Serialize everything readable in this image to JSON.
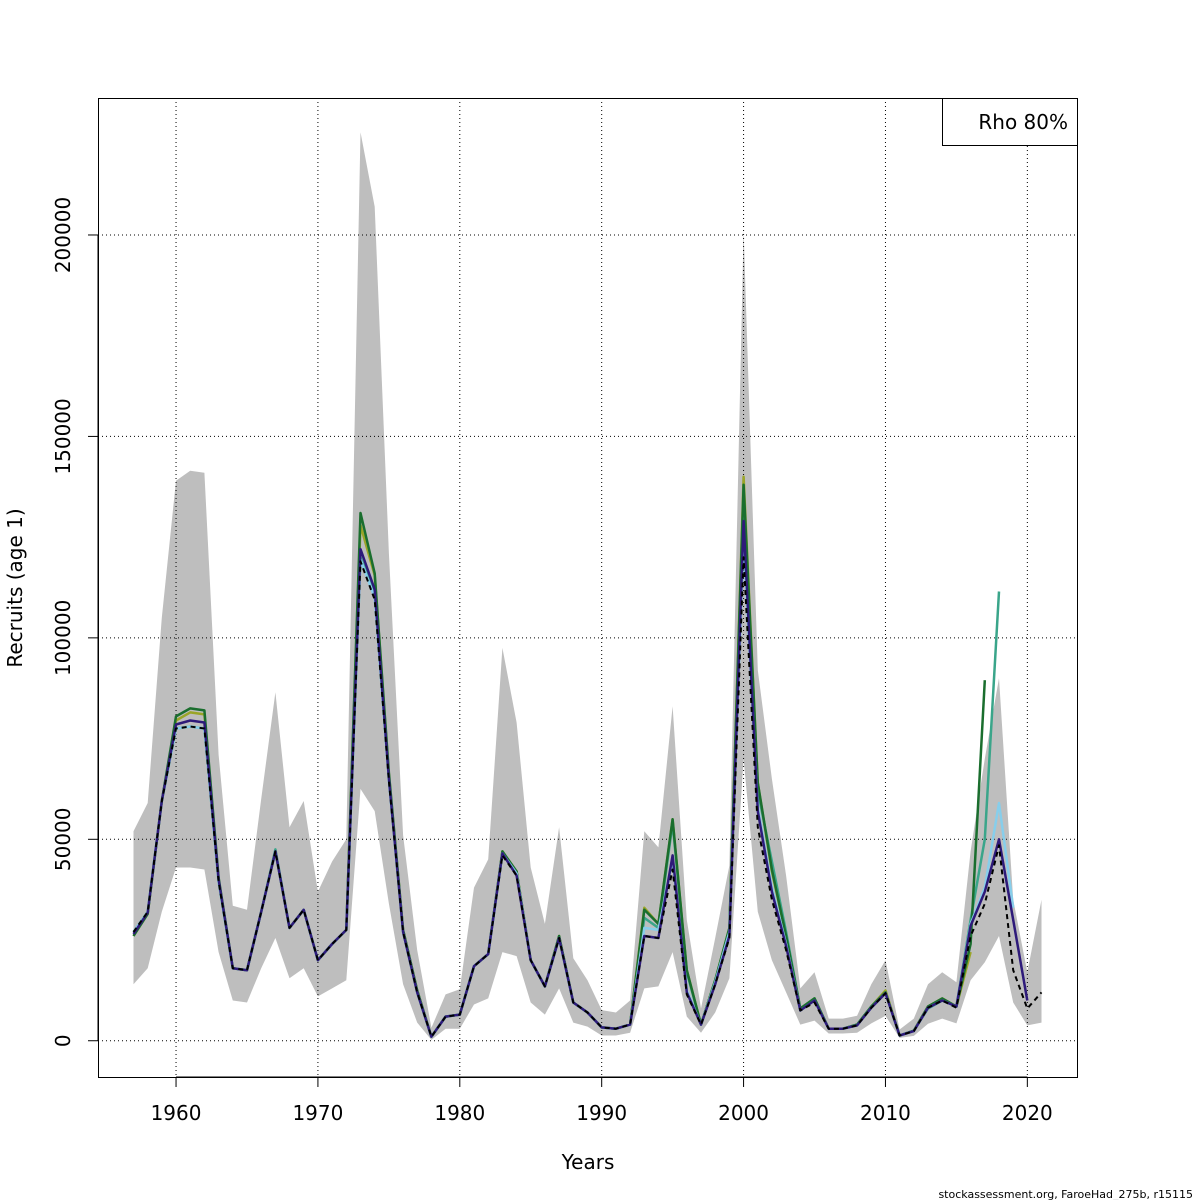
{
  "chart_data": {
    "type": "line",
    "xlabel": "Years",
    "ylabel": "Recruits (age 1)",
    "xlim": [
      1954.5,
      2023.5
    ],
    "ylim": [
      -9000,
      234000
    ],
    "xticks": [
      1960,
      1970,
      1980,
      1990,
      2000,
      2010,
      2020
    ],
    "yticks": [
      0,
      50000,
      100000,
      150000,
      200000
    ],
    "grid": true,
    "legend": {
      "position": "top-right",
      "text": "Rho 80%"
    },
    "credit": "stockassessment.org, FaroeHad_275b, r15115",
    "colors": {
      "band": "#bebebe",
      "base": "#000000",
      "peel1": "#2e1a7a",
      "peel2": "#87ceeb",
      "peel3": "#3aa58a",
      "peel4": "#1a6e2e",
      "peel5": "#9aa528"
    },
    "confidence_band": {
      "x": [
        1957,
        1958,
        1959,
        1960,
        1961,
        1962,
        1963,
        1964,
        1965,
        1966,
        1967,
        1968,
        1969,
        1970,
        1971,
        1972,
        1973,
        1974,
        1975,
        1976,
        1977,
        1978,
        1979,
        1980,
        1981,
        1982,
        1983,
        1984,
        1985,
        1986,
        1987,
        1988,
        1989,
        1990,
        1991,
        1992,
        1993,
        1994,
        1995,
        1996,
        1997,
        1998,
        1999,
        2000,
        2001,
        2002,
        2003,
        2004,
        2005,
        2006,
        2007,
        2008,
        2009,
        2010,
        2011,
        2012,
        2013,
        2014,
        2015,
        2016,
        2017,
        2018,
        2019,
        2020,
        2021
      ],
      "upper": [
        52000,
        59000,
        105000,
        139000,
        141500,
        141000,
        71000,
        33500,
        32500,
        60000,
        86500,
        53000,
        59500,
        37000,
        44500,
        50000,
        225500,
        207000,
        121000,
        51000,
        22500,
        3200,
        11500,
        12800,
        38000,
        45000,
        97500,
        79000,
        43000,
        29000,
        53000,
        20500,
        15000,
        7600,
        7000,
        10000,
        52000,
        48000,
        83000,
        30000,
        8000,
        25500,
        43500,
        201000,
        92000,
        65000,
        41000,
        13000,
        17000,
        5500,
        5500,
        6200,
        14000,
        20000,
        2800,
        5500,
        14000,
        17000,
        14500,
        47000,
        70000,
        90000,
        35000,
        17000,
        35000
      ],
      "lower": [
        14000,
        18000,
        32000,
        43000,
        43000,
        42500,
        22000,
        10000,
        9500,
        18000,
        25500,
        15500,
        18000,
        11000,
        13000,
        15000,
        62500,
        57000,
        34000,
        14000,
        4500,
        200,
        3000,
        3000,
        9000,
        10500,
        22000,
        21000,
        9500,
        6500,
        13000,
        4500,
        3500,
        1300,
        1300,
        2000,
        13000,
        13500,
        22000,
        6000,
        2000,
        7000,
        15500,
        70000,
        32000,
        20000,
        12000,
        4000,
        5000,
        1800,
        1800,
        2000,
        4300,
        6200,
        700,
        1200,
        4200,
        5500,
        4300,
        15000,
        19500,
        26000,
        9500,
        3800,
        4500
      ]
    },
    "series": [
      {
        "name": "",
        "color_key": "peel5",
        "style": "solid",
        "x": [
          1957,
          1958,
          1959,
          1960,
          1961,
          1962,
          1963,
          1964,
          1965,
          1966,
          1967,
          1968,
          1969,
          1970,
          1971,
          1972,
          1973,
          1974,
          1975,
          1976,
          1977,
          1978,
          1979,
          1980,
          1981,
          1982,
          1983,
          1984,
          1985,
          1986,
          1987,
          1988,
          1989,
          1990,
          1991,
          1992,
          1993,
          1994,
          1995,
          1996,
          1997,
          1998,
          1999,
          2000,
          2001,
          2002,
          2003,
          2004,
          2005,
          2006,
          2007,
          2008,
          2009,
          2010,
          2011,
          2012,
          2013,
          2014,
          2015,
          2016
        ],
        "values": [
          26000,
          31500,
          59500,
          79500,
          81500,
          81000,
          40000,
          18000,
          17500,
          32000,
          47000,
          28000,
          32500,
          20000,
          24000,
          27500,
          128000,
          115500,
          66000,
          27500,
          12500,
          1000,
          6000,
          6500,
          18500,
          21500,
          47000,
          42000,
          20000,
          13500,
          26000,
          9500,
          7000,
          3300,
          3000,
          4000,
          33000,
          29000,
          55000,
          17500,
          4000,
          15000,
          28000,
          140000,
          64000,
          42000,
          26000,
          8000,
          10500,
          3000,
          3000,
          4000,
          8500,
          12500,
          1300,
          2500,
          8500,
          10500,
          8500,
          22000
        ]
      },
      {
        "name": "",
        "color_key": "peel3",
        "style": "solid",
        "x": [
          1957,
          1958,
          1959,
          1960,
          1961,
          1962,
          1963,
          1964,
          1965,
          1966,
          1967,
          1968,
          1969,
          1970,
          1971,
          1972,
          1973,
          1974,
          1975,
          1976,
          1977,
          1978,
          1979,
          1980,
          1981,
          1982,
          1983,
          1984,
          1985,
          1986,
          1987,
          1988,
          1989,
          1990,
          1991,
          1992,
          1993,
          1994,
          1995,
          1996,
          1997,
          1998,
          1999,
          2000,
          2001,
          2002,
          2003,
          2004,
          2005,
          2006,
          2007,
          2008,
          2009,
          2010,
          2011,
          2012,
          2013,
          2014,
          2015,
          2016,
          2017,
          2018
        ],
        "values": [
          27000,
          32000,
          59500,
          77500,
          78000,
          77500,
          39500,
          18000,
          17500,
          32000,
          47500,
          28000,
          32500,
          20000,
          24000,
          27500,
          120000,
          111000,
          65000,
          27000,
          12000,
          1000,
          6000,
          6500,
          18500,
          21500,
          46500,
          41500,
          20000,
          13500,
          25500,
          9500,
          7000,
          3300,
          3000,
          4000,
          30500,
          28000,
          54000,
          17000,
          4000,
          15000,
          27000,
          137000,
          62000,
          44500,
          27000,
          8000,
          10500,
          3000,
          3000,
          4000,
          8500,
          12000,
          1300,
          2500,
          8000,
          10000,
          8500,
          30000,
          50000,
          111500
        ]
      },
      {
        "name": "",
        "color_key": "peel4",
        "style": "solid",
        "x": [
          1957,
          1958,
          1959,
          1960,
          1961,
          1962,
          1963,
          1964,
          1965,
          1966,
          1967,
          1968,
          1969,
          1970,
          1971,
          1972,
          1973,
          1974,
          1975,
          1976,
          1977,
          1978,
          1979,
          1980,
          1981,
          1982,
          1983,
          1984,
          1985,
          1986,
          1987,
          1988,
          1989,
          1990,
          1991,
          1992,
          1993,
          1994,
          1995,
          1996,
          1997,
          1998,
          1999,
          2000,
          2001,
          2002,
          2003,
          2004,
          2005,
          2006,
          2007,
          2008,
          2009,
          2010,
          2011,
          2012,
          2013,
          2014,
          2015,
          2016,
          2017
        ],
        "values": [
          26000,
          31500,
          59500,
          80500,
          82500,
          82000,
          40500,
          18000,
          17500,
          32000,
          47000,
          28000,
          32500,
          20000,
          24000,
          27500,
          131000,
          116000,
          66500,
          27500,
          12500,
          1000,
          6000,
          6500,
          18500,
          21500,
          47000,
          42000,
          20000,
          13500,
          26000,
          9500,
          7000,
          3300,
          3000,
          4000,
          32500,
          29000,
          55000,
          17500,
          4000,
          15000,
          28000,
          138000,
          64000,
          42500,
          26000,
          8000,
          10500,
          3000,
          3000,
          4000,
          8500,
          12000,
          1300,
          2500,
          8500,
          10500,
          8500,
          24000,
          89500
        ]
      },
      {
        "name": "",
        "color_key": "peel2",
        "style": "solid",
        "x": [
          1957,
          1958,
          1959,
          1960,
          1961,
          1962,
          1963,
          1964,
          1965,
          1966,
          1967,
          1968,
          1969,
          1970,
          1971,
          1972,
          1973,
          1974,
          1975,
          1976,
          1977,
          1978,
          1979,
          1980,
          1981,
          1982,
          1983,
          1984,
          1985,
          1986,
          1987,
          1988,
          1989,
          1990,
          1991,
          1992,
          1993,
          1994,
          1995,
          1996,
          1997,
          1998,
          1999,
          2000,
          2001,
          2002,
          2003,
          2004,
          2005,
          2006,
          2007,
          2008,
          2009,
          2010,
          2011,
          2012,
          2013,
          2014,
          2015,
          2016,
          2017,
          2018,
          2019
        ],
        "values": [
          27000,
          32000,
          59500,
          77500,
          78000,
          77500,
          39500,
          18000,
          17500,
          32000,
          47000,
          28000,
          32500,
          20000,
          24000,
          27500,
          119500,
          110000,
          64500,
          27000,
          12000,
          1000,
          6000,
          6500,
          18500,
          21500,
          46500,
          41500,
          20000,
          13500,
          25500,
          9500,
          7000,
          3300,
          3000,
          4000,
          28000,
          27500,
          45000,
          12500,
          4000,
          14500,
          27000,
          125000,
          58000,
          38000,
          24000,
          7500,
          10000,
          3000,
          3000,
          3800,
          8200,
          11800,
          1300,
          2400,
          8200,
          10000,
          8500,
          29000,
          38000,
          59000,
          33000
        ]
      },
      {
        "name": "",
        "color_key": "peel1",
        "style": "solid",
        "x": [
          1957,
          1958,
          1959,
          1960,
          1961,
          1962,
          1963,
          1964,
          1965,
          1966,
          1967,
          1968,
          1969,
          1970,
          1971,
          1972,
          1973,
          1974,
          1975,
          1976,
          1977,
          1978,
          1979,
          1980,
          1981,
          1982,
          1983,
          1984,
          1985,
          1986,
          1987,
          1988,
          1989,
          1990,
          1991,
          1992,
          1993,
          1994,
          1995,
          1996,
          1997,
          1998,
          1999,
          2000,
          2001,
          2002,
          2003,
          2004,
          2005,
          2006,
          2007,
          2008,
          2009,
          2010,
          2011,
          2012,
          2013,
          2014,
          2015,
          2016,
          2017,
          2018,
          2019,
          2020
        ],
        "values": [
          26500,
          31800,
          59500,
          78500,
          79500,
          79000,
          40000,
          18000,
          17500,
          32000,
          47000,
          28000,
          32500,
          20000,
          24000,
          27500,
          122000,
          112000,
          65000,
          27000,
          12000,
          1000,
          6000,
          6500,
          18500,
          21500,
          46500,
          41000,
          20000,
          13500,
          25500,
          9500,
          7000,
          3300,
          3000,
          4000,
          26000,
          25500,
          46000,
          12000,
          4000,
          14000,
          26000,
          129000,
          57000,
          37000,
          23500,
          7500,
          10000,
          3000,
          3000,
          3800,
          8200,
          11800,
          1300,
          2400,
          8200,
          10000,
          8500,
          28500,
          37000,
          50000,
          30000,
          10000
        ]
      },
      {
        "name": "",
        "color_key": "base",
        "style": "dashed",
        "x": [
          1957,
          1958,
          1959,
          1960,
          1961,
          1962,
          1963,
          1964,
          1965,
          1966,
          1967,
          1968,
          1969,
          1970,
          1971,
          1972,
          1973,
          1974,
          1975,
          1976,
          1977,
          1978,
          1979,
          1980,
          1981,
          1982,
          1983,
          1984,
          1985,
          1986,
          1987,
          1988,
          1989,
          1990,
          1991,
          1992,
          1993,
          1994,
          1995,
          1996,
          1997,
          1998,
          1999,
          2000,
          2001,
          2002,
          2003,
          2004,
          2005,
          2006,
          2007,
          2008,
          2009,
          2010,
          2011,
          2012,
          2013,
          2014,
          2015,
          2016,
          2017,
          2018,
          2019,
          2020,
          2021
        ],
        "values": [
          27000,
          32000,
          59500,
          77500,
          78000,
          77500,
          39500,
          18000,
          17500,
          32000,
          47000,
          28000,
          32500,
          20000,
          24000,
          27500,
          119000,
          109500,
          64500,
          27000,
          12000,
          1000,
          6000,
          6500,
          18500,
          21500,
          46000,
          41000,
          20000,
          13500,
          25500,
          9500,
          7000,
          3300,
          3000,
          4000,
          26000,
          25500,
          42500,
          11500,
          4000,
          14000,
          25500,
          120000,
          53000,
          35000,
          22500,
          7500,
          9500,
          3000,
          3000,
          3800,
          8200,
          11800,
          1300,
          2400,
          8200,
          10000,
          8200,
          26000,
          34000,
          48500,
          17500,
          8000,
          12000
        ]
      }
    ]
  }
}
